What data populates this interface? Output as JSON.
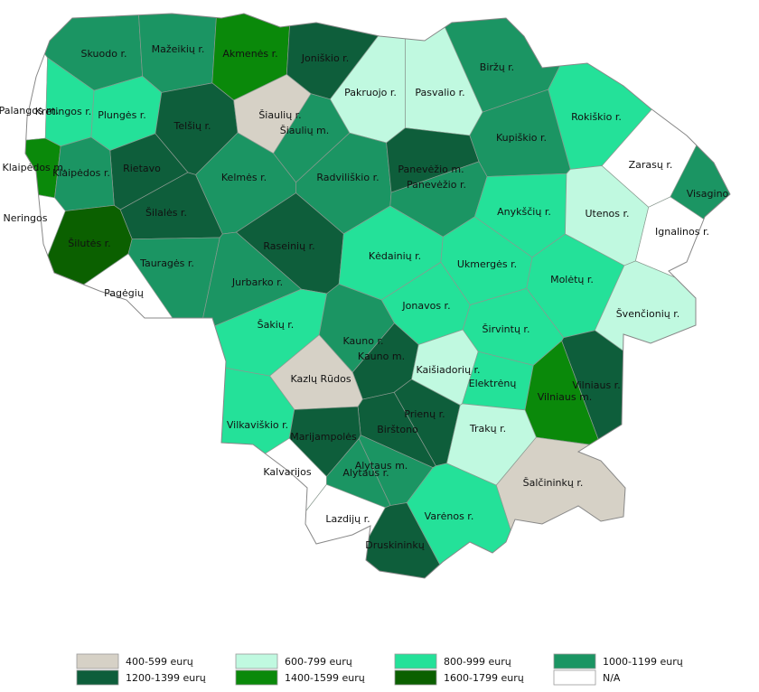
{
  "legend": [
    {
      "label": "400-599 eurų",
      "color": "#d6d1c6"
    },
    {
      "label": "1200-1399 eurų",
      "color": "#0e5e3b"
    },
    {
      "label": "600-799 eurų",
      "color": "#c0f9e0"
    },
    {
      "label": "1400-1599 eurų",
      "color": "#0a890a"
    },
    {
      "label": "800-999 eurų",
      "color": "#24e199"
    },
    {
      "label": "1600-1799 eurų",
      "color": "#0b6000"
    },
    {
      "label": "1000-1199 eurų",
      "color": "#1b9563"
    },
    {
      "label": "N/A",
      "color": "#ffffff"
    }
  ],
  "regions": [
    {
      "name": "Skuodo r.",
      "legend_item": 6
    },
    {
      "name": "Mažeikių r.",
      "legend_item": 6
    },
    {
      "name": "Akmenės r.",
      "legend_item": 3
    },
    {
      "name": "Joniškio r.",
      "legend_item": 1
    },
    {
      "name": "Biržų r.",
      "legend_item": 6
    },
    {
      "name": "Pakruojo r.",
      "legend_item": 2
    },
    {
      "name": "Pasvalio r.",
      "legend_item": 2
    },
    {
      "name": "Palangos m.",
      "legend_item": 7
    },
    {
      "name": "Kretingos r.",
      "legend_item": 4
    },
    {
      "name": "Plungės r.",
      "legend_item": 4
    },
    {
      "name": "Telšių r.",
      "legend_item": 1
    },
    {
      "name": "Šiaulių r.",
      "legend_item": 0
    },
    {
      "name": "Šiaulių m.",
      "legend_item": 6
    },
    {
      "name": "Rokiškio r.",
      "legend_item": 4
    },
    {
      "name": "Kupiškio r.",
      "legend_item": 6
    },
    {
      "name": "Klaipėdos m.",
      "legend_item": 3
    },
    {
      "name": "Rietavo",
      "legend_item": 1
    },
    {
      "name": "Klaipėdos r.",
      "legend_item": 6
    },
    {
      "name": "Kelmės r.",
      "legend_item": 6
    },
    {
      "name": "Radviliškio r.",
      "legend_item": 6
    },
    {
      "name": "Panevėžio m.",
      "legend_item": 1
    },
    {
      "name": "Panevėžio r.",
      "legend_item": 6
    },
    {
      "name": "Zarasų r.",
      "legend_item": 7
    },
    {
      "name": "Visagino",
      "legend_item": 6
    },
    {
      "name": "Neringos",
      "legend_item": 7
    },
    {
      "name": "Šilalės r.",
      "legend_item": 1
    },
    {
      "name": "Anykščių r.",
      "legend_item": 4
    },
    {
      "name": "Utenos r.",
      "legend_item": 2
    },
    {
      "name": "Ignalinos r.",
      "legend_item": 7
    },
    {
      "name": "Šilutės r.",
      "legend_item": 5
    },
    {
      "name": "Raseinių r.",
      "legend_item": 1
    },
    {
      "name": "Kėdainių r.",
      "legend_item": 4
    },
    {
      "name": "Ukmergės r.",
      "legend_item": 4
    },
    {
      "name": "Tauragės r.",
      "legend_item": 6
    },
    {
      "name": "Molėtų r.",
      "legend_item": 4
    },
    {
      "name": "Jurbarko r.",
      "legend_item": 6
    },
    {
      "name": "Pagėgių",
      "legend_item": 7
    },
    {
      "name": "Jonavos r.",
      "legend_item": 4
    },
    {
      "name": "Švenčionių r.",
      "legend_item": 2
    },
    {
      "name": "Šakių r.",
      "legend_item": 4
    },
    {
      "name": "Širvintų r.",
      "legend_item": 4
    },
    {
      "name": "Kauno r.",
      "legend_item": 6
    },
    {
      "name": "Kauno m.",
      "legend_item": 1
    },
    {
      "name": "Kazlų Rūdos",
      "legend_item": 0
    },
    {
      "name": "Kaišiadorių r.",
      "legend_item": 2
    },
    {
      "name": "Elektrėnų",
      "legend_item": 4
    },
    {
      "name": "Vilniaus r.",
      "legend_item": 1
    },
    {
      "name": "Vilniaus m.",
      "legend_item": 3
    },
    {
      "name": "Prienų r.",
      "legend_item": 1
    },
    {
      "name": "Birštono",
      "legend_item": 1
    },
    {
      "name": "Vilkaviškio r.",
      "legend_item": 4
    },
    {
      "name": "Trakų r.",
      "legend_item": 2
    },
    {
      "name": "Marijampolės",
      "legend_item": 1
    },
    {
      "name": "Alytaus m.",
      "legend_item": 6
    },
    {
      "name": "Kalvarijos",
      "legend_item": 7
    },
    {
      "name": "Alytaus r.",
      "legend_item": 6
    },
    {
      "name": "Šalčininkų r.",
      "legend_item": 0
    },
    {
      "name": "Varėnos r.",
      "legend_item": 4
    },
    {
      "name": "Lazdijų r.",
      "legend_item": 7
    },
    {
      "name": "Druskininkų",
      "legend_item": 1
    }
  ]
}
